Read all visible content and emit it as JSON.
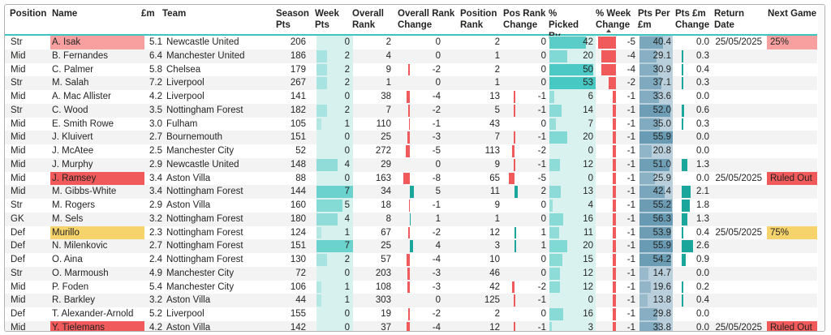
{
  "colors": {
    "accent": "#3fc5c0",
    "red": "#f05a5a",
    "pink": "#f8a0a0",
    "yellow": "#f6d36b",
    "week_pts_bg": "#d6f1ee",
    "picked_bg": "#d9f2ef",
    "pts_per_bg": "#b9cfdc",
    "pts_per_dark": "#4e8aa6",
    "teal_bar": "#1aa69a"
  },
  "headers": [
    {
      "key": "position",
      "label": "Position"
    },
    {
      "key": "name",
      "label": "Name"
    },
    {
      "key": "price",
      "label": "£m"
    },
    {
      "key": "team",
      "label": "Team"
    },
    {
      "key": "season",
      "label": "Season Pts"
    },
    {
      "key": "week",
      "label": "Week Pts"
    },
    {
      "key": "overall",
      "label": "Overall Rank"
    },
    {
      "key": "orc",
      "label": "Overall Rank Change"
    },
    {
      "key": "pos",
      "label": "Position Rank"
    },
    {
      "key": "prc",
      "label": "Pos Rank Change"
    },
    {
      "key": "picked",
      "label": "% Picked By"
    },
    {
      "key": "wc",
      "label": "% Week Change"
    },
    {
      "key": "ppm",
      "label": "Pts Per £m"
    },
    {
      "key": "ppmc",
      "label": "Pts £m Change"
    },
    {
      "key": "ret",
      "label": "Return Date"
    },
    {
      "key": "next",
      "label": "Next Game"
    }
  ],
  "rows": [
    {
      "position": "Str",
      "name": "A. Isak",
      "name_hl": "pink",
      "price": "5.1",
      "team": "Newcastle United",
      "season": "206",
      "week": "0",
      "overall": "2",
      "orc": "0",
      "pos": "2",
      "prc": "0",
      "picked": "42",
      "wc": "-5",
      "ppm": "40.4",
      "ppmc": "0.0",
      "ret": "25/05/2025",
      "next": "25%",
      "next_hl": "pink"
    },
    {
      "position": "Mid",
      "name": "B. Fernandes",
      "name_hl": "",
      "price": "6.4",
      "team": "Manchester United",
      "season": "186",
      "week": "2",
      "overall": "4",
      "orc": "0",
      "pos": "1",
      "prc": "0",
      "picked": "20",
      "wc": "-4",
      "ppm": "29.1",
      "ppmc": "0.3",
      "ret": "",
      "next": "",
      "next_hl": ""
    },
    {
      "position": "Mid",
      "name": "C. Palmer",
      "name_hl": "",
      "price": "5.8",
      "team": "Chelsea",
      "season": "179",
      "week": "2",
      "overall": "9",
      "orc": "-2",
      "pos": "2",
      "prc": "0",
      "picked": "50",
      "wc": "-4",
      "ppm": "30.9",
      "ppmc": "0.4",
      "ret": "",
      "next": "",
      "next_hl": ""
    },
    {
      "position": "Str",
      "name": "M. Salah",
      "name_hl": "",
      "price": "7.2",
      "team": "Liverpool",
      "season": "267",
      "week": "2",
      "overall": "1",
      "orc": "0",
      "pos": "1",
      "prc": "0",
      "picked": "53",
      "wc": "-2",
      "ppm": "37.1",
      "ppmc": "0.3",
      "ret": "",
      "next": "",
      "next_hl": ""
    },
    {
      "position": "Mid",
      "name": "A. Mac Allister",
      "name_hl": "",
      "price": "4.2",
      "team": "Liverpool",
      "season": "141",
      "week": "0",
      "overall": "38",
      "orc": "-4",
      "pos": "13",
      "prc": "-1",
      "picked": "6",
      "wc": "-1",
      "ppm": "33.6",
      "ppmc": "0.0",
      "ret": "",
      "next": "",
      "next_hl": ""
    },
    {
      "position": "Str",
      "name": "C. Wood",
      "name_hl": "",
      "price": "3.5",
      "team": "Nottingham Forest",
      "season": "182",
      "week": "2",
      "overall": "7",
      "orc": "-2",
      "pos": "5",
      "prc": "-1",
      "picked": "14",
      "wc": "-1",
      "ppm": "52.0",
      "ppmc": "0.6",
      "ret": "",
      "next": "",
      "next_hl": ""
    },
    {
      "position": "Mid",
      "name": "E. Smith Rowe",
      "name_hl": "",
      "price": "3.0",
      "team": "Fulham",
      "season": "105",
      "week": "1",
      "overall": "110",
      "orc": "-1",
      "pos": "43",
      "prc": "0",
      "picked": "7",
      "wc": "-1",
      "ppm": "35.0",
      "ppmc": "0.3",
      "ret": "",
      "next": "",
      "next_hl": ""
    },
    {
      "position": "Mid",
      "name": "J. Kluivert",
      "name_hl": "",
      "price": "2.7",
      "team": "Bournemouth",
      "season": "151",
      "week": "0",
      "overall": "25",
      "orc": "-3",
      "pos": "7",
      "prc": "-1",
      "picked": "20",
      "wc": "-1",
      "ppm": "55.9",
      "ppmc": "0.0",
      "ret": "",
      "next": "",
      "next_hl": ""
    },
    {
      "position": "Mid",
      "name": "J. McAtee",
      "name_hl": "",
      "price": "2.5",
      "team": "Manchester City",
      "season": "52",
      "week": "0",
      "overall": "272",
      "orc": "-5",
      "pos": "113",
      "prc": "-2",
      "picked": "0",
      "wc": "-1",
      "ppm": "20.8",
      "ppmc": "0.0",
      "ret": "",
      "next": "",
      "next_hl": ""
    },
    {
      "position": "Mid",
      "name": "J. Murphy",
      "name_hl": "",
      "price": "2.9",
      "team": "Newcastle United",
      "season": "148",
      "week": "4",
      "overall": "29",
      "orc": "0",
      "pos": "9",
      "prc": "-1",
      "picked": "12",
      "wc": "-1",
      "ppm": "51.0",
      "ppmc": "1.3",
      "ret": "",
      "next": "",
      "next_hl": ""
    },
    {
      "position": "Mid",
      "name": "J. Ramsey",
      "name_hl": "red",
      "price": "3.4",
      "team": "Aston Villa",
      "season": "88",
      "week": "0",
      "overall": "163",
      "orc": "-8",
      "pos": "65",
      "prc": "-5",
      "picked": "0",
      "wc": "-1",
      "ppm": "25.9",
      "ppmc": "0.0",
      "ret": "25/05/2025",
      "next": "Ruled Out",
      "next_hl": "red"
    },
    {
      "position": "Mid",
      "name": "M. Gibbs-White",
      "name_hl": "",
      "price": "3.4",
      "team": "Nottingham Forest",
      "season": "144",
      "week": "7",
      "overall": "34",
      "orc": "5",
      "pos": "11",
      "prc": "2",
      "picked": "13",
      "wc": "-1",
      "ppm": "42.4",
      "ppmc": "2.1",
      "ret": "",
      "next": "",
      "next_hl": ""
    },
    {
      "position": "Str",
      "name": "M. Rogers",
      "name_hl": "",
      "price": "2.9",
      "team": "Aston Villa",
      "season": "160",
      "week": "5",
      "overall": "18",
      "orc": "-1",
      "pos": "9",
      "prc": "0",
      "picked": "4",
      "wc": "-1",
      "ppm": "55.2",
      "ppmc": "1.8",
      "ret": "",
      "next": "",
      "next_hl": ""
    },
    {
      "position": "GK",
      "name": "M. Sels",
      "name_hl": "",
      "price": "3.2",
      "team": "Nottingham Forest",
      "season": "180",
      "week": "4",
      "overall": "8",
      "orc": "1",
      "pos": "1",
      "prc": "0",
      "picked": "16",
      "wc": "-1",
      "ppm": "56.3",
      "ppmc": "1.3",
      "ret": "",
      "next": "",
      "next_hl": ""
    },
    {
      "position": "Def",
      "name": "Murillo",
      "name_hl": "yellow",
      "price": "2.3",
      "team": "Nottingham Forest",
      "season": "124",
      "week": "1",
      "overall": "67",
      "orc": "-2",
      "pos": "12",
      "prc": "1",
      "picked": "11",
      "wc": "-1",
      "ppm": "53.9",
      "ppmc": "0.4",
      "ret": "25/05/2025",
      "next": "75%",
      "next_hl": "yellow"
    },
    {
      "position": "Def",
      "name": "N. Milenkovic",
      "name_hl": "",
      "price": "2.7",
      "team": "Nottingham Forest",
      "season": "151",
      "week": "7",
      "overall": "25",
      "orc": "4",
      "pos": "3",
      "prc": "1",
      "picked": "20",
      "wc": "-1",
      "ppm": "55.9",
      "ppmc": "2.6",
      "ret": "",
      "next": "",
      "next_hl": ""
    },
    {
      "position": "Def",
      "name": "O. Aina",
      "name_hl": "",
      "price": "2.4",
      "team": "Nottingham Forest",
      "season": "130",
      "week": "2",
      "overall": "57",
      "orc": "-4",
      "pos": "10",
      "prc": "0",
      "picked": "15",
      "wc": "-1",
      "ppm": "54.2",
      "ppmc": "0.9",
      "ret": "",
      "next": "",
      "next_hl": ""
    },
    {
      "position": "Str",
      "name": "O. Marmoush",
      "name_hl": "",
      "price": "4.9",
      "team": "Manchester City",
      "season": "72",
      "week": "0",
      "overall": "203",
      "orc": "-3",
      "pos": "46",
      "prc": "0",
      "picked": "12",
      "wc": "-1",
      "ppm": "14.7",
      "ppmc": "0.0",
      "ret": "",
      "next": "",
      "next_hl": ""
    },
    {
      "position": "Mid",
      "name": "P. Foden",
      "name_hl": "",
      "price": "5.4",
      "team": "Manchester City",
      "season": "106",
      "week": "1",
      "overall": "108",
      "orc": "-3",
      "pos": "42",
      "prc": "-2",
      "picked": "12",
      "wc": "-1",
      "ppm": "19.6",
      "ppmc": "0.2",
      "ret": "",
      "next": "",
      "next_hl": ""
    },
    {
      "position": "Mid",
      "name": "R. Barkley",
      "name_hl": "",
      "price": "3.2",
      "team": "Aston Villa",
      "season": "44",
      "week": "1",
      "overall": "303",
      "orc": "0",
      "pos": "125",
      "prc": "-1",
      "picked": "0",
      "wc": "-1",
      "ppm": "13.8",
      "ppmc": "0.4",
      "ret": "",
      "next": "",
      "next_hl": ""
    },
    {
      "position": "Def",
      "name": "T. Alexander-Arnold",
      "name_hl": "",
      "price": "5.2",
      "team": "Liverpool",
      "season": "155",
      "week": "0",
      "overall": "19",
      "orc": "-2",
      "pos": "2",
      "prc": "0",
      "picked": "16",
      "wc": "-1",
      "ppm": "29.8",
      "ppmc": "0.0",
      "ret": "",
      "next": "",
      "next_hl": ""
    },
    {
      "position": "Mid",
      "name": "Y. Tielemans",
      "name_hl": "red",
      "price": "4.2",
      "team": "Aston Villa",
      "season": "142",
      "week": "0",
      "overall": "37",
      "orc": "-4",
      "pos": "12",
      "prc": "-1",
      "picked": "3",
      "wc": "-1",
      "ppm": "33.8",
      "ppmc": "0.0",
      "ret": "25/05/2025",
      "next": "Ruled Out",
      "next_hl": "red"
    }
  ]
}
